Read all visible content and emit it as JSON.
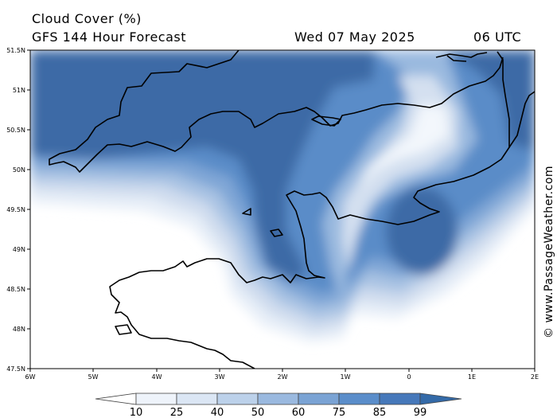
{
  "header": {
    "variable": "Cloud Cover (%)",
    "model": "GFS 144 Hour Forecast",
    "date": "Wed 07 May 2025",
    "time": "06 UTC"
  },
  "axes": {
    "lat_labels": [
      "51.5N",
      "51N",
      "50.5N",
      "50N",
      "49.5N",
      "49N",
      "48.5N",
      "48N",
      "47.5N"
    ],
    "lon_labels": [
      "6W",
      "5W",
      "4W",
      "3W",
      "2W",
      "1W",
      "0",
      "1E",
      "2E"
    ]
  },
  "colorbar": {
    "levels": [
      "10",
      "25",
      "40",
      "50",
      "60",
      "75",
      "85",
      "99"
    ],
    "colors": [
      "#ffffff",
      "#eef3fa",
      "#dbe6f4",
      "#bcd1ea",
      "#9ab9df",
      "#7aa3d4",
      "#5a8dca",
      "#4678ba",
      "#346aa8"
    ]
  },
  "watermark": "© www.PassageWeather.com"
}
